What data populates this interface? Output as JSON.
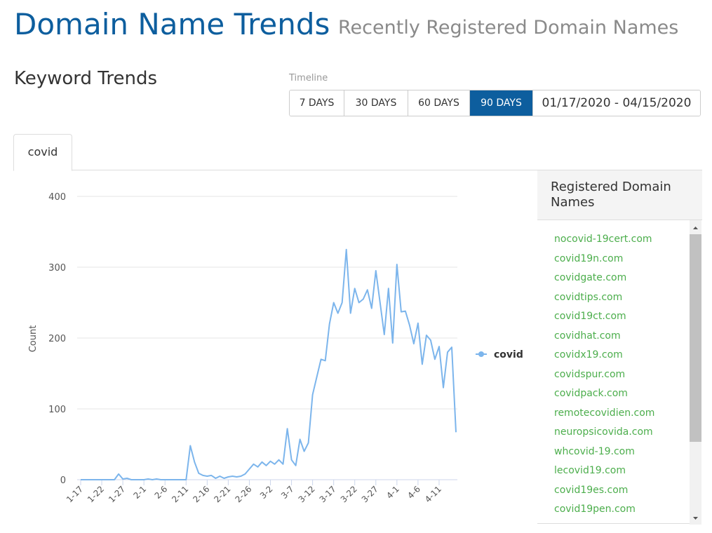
{
  "header": {
    "title": "Domain Name Trends",
    "subtitle": "Recently Registered Domain Names"
  },
  "section_title": "Keyword Trends",
  "timeline": {
    "label": "Timeline",
    "options": [
      "7 DAYS",
      "30 DAYS",
      "60 DAYS",
      "90 DAYS"
    ],
    "selected": "90 DAYS",
    "date_range": "01/17/2020 - 04/15/2020"
  },
  "tab": "covid",
  "chart_data": {
    "type": "line",
    "y_label": "Count",
    "categories": [
      "1-17",
      null,
      null,
      null,
      null,
      "1-22",
      null,
      null,
      null,
      null,
      "1-27",
      null,
      null,
      null,
      null,
      "2-1",
      null,
      null,
      null,
      null,
      "2-6",
      null,
      null,
      null,
      null,
      "2-11",
      null,
      null,
      null,
      null,
      "2-16",
      null,
      null,
      null,
      null,
      "2-21",
      null,
      null,
      null,
      null,
      "2-26",
      null,
      null,
      null,
      null,
      "3-2",
      null,
      null,
      null,
      null,
      "3-7",
      null,
      null,
      null,
      null,
      "3-12",
      null,
      null,
      null,
      null,
      "3-17",
      null,
      null,
      null,
      null,
      "3-22",
      null,
      null,
      null,
      null,
      "3-27",
      null,
      null,
      null,
      null,
      "4-1",
      null,
      null,
      null,
      null,
      "4-6",
      null,
      null,
      null,
      null,
      "4-11",
      null,
      null,
      null,
      null
    ],
    "series": [
      {
        "name": "covid",
        "color": "#7cb5ec",
        "values": [
          0,
          0,
          0,
          0,
          0,
          0,
          0,
          0,
          0,
          8,
          1,
          2,
          0,
          0,
          0,
          0,
          1,
          0,
          1,
          0,
          0,
          0,
          0,
          0,
          0,
          0,
          48,
          25,
          9,
          6,
          5,
          6,
          2,
          5,
          2,
          4,
          5,
          4,
          5,
          8,
          15,
          22,
          18,
          25,
          20,
          26,
          22,
          28,
          22,
          72,
          28,
          20,
          57,
          40,
          52,
          120,
          145,
          170,
          168,
          220,
          250,
          235,
          250,
          325,
          235,
          270,
          250,
          255,
          268,
          242,
          295,
          250,
          205,
          270,
          193,
          304,
          237,
          238,
          218,
          192,
          221,
          163,
          204,
          197,
          170,
          188,
          130,
          180,
          187,
          67
        ]
      }
    ],
    "ylim": [
      0,
      400
    ],
    "yticks": [
      0,
      100,
      200,
      300,
      400
    ],
    "grid": true,
    "legend": "right"
  },
  "domains": {
    "title": "Registered Domain Names",
    "items": [
      "nocovid-19cert.com",
      "covid19n.com",
      "covidgate.com",
      "covidtips.com",
      "covid19ct.com",
      "covidhat.com",
      "covidx19.com",
      "covidspur.com",
      "covidpack.com",
      "remotecovidien.com",
      "neuropsicovida.com",
      "whcovid-19.com",
      "lecovid19.com",
      "covid19es.com",
      "covid19pen.com"
    ]
  }
}
